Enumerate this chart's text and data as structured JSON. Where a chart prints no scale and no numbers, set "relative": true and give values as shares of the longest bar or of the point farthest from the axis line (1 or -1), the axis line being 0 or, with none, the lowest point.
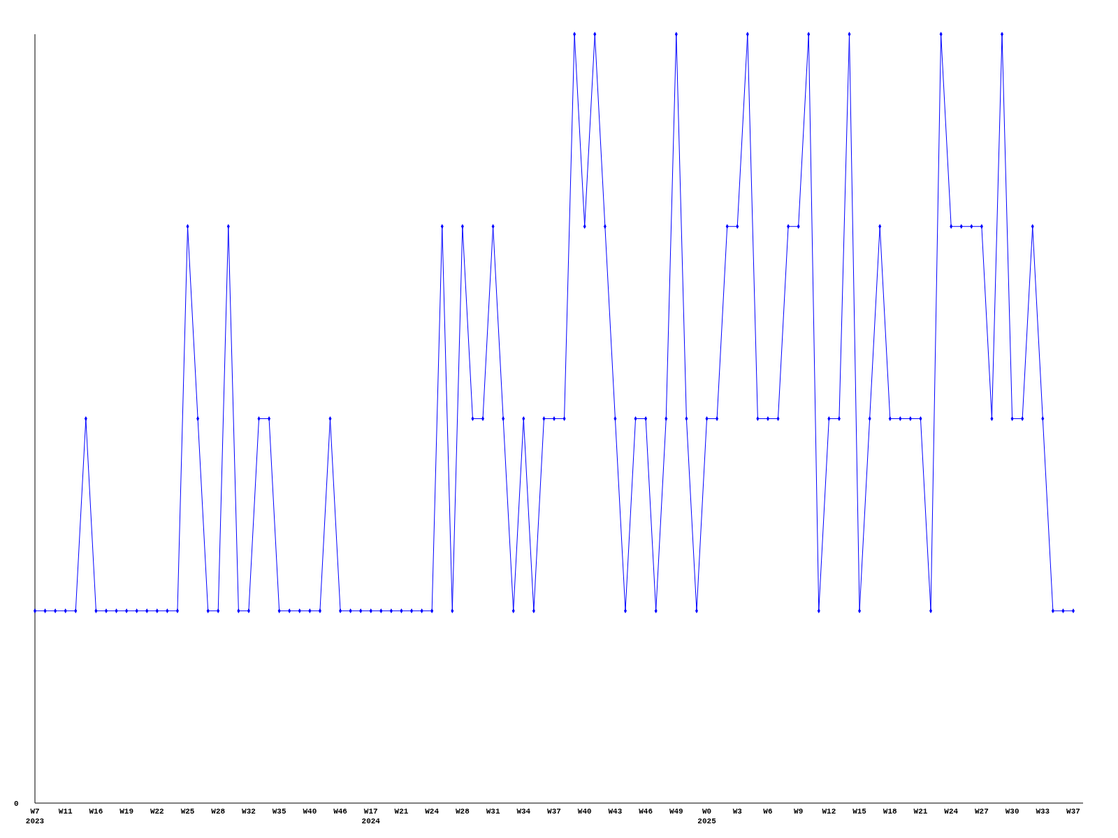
{
  "chart_data": {
    "type": "line",
    "relative": true,
    "marker": "diamond",
    "line_style": "solid",
    "annotations": [
      "0"
    ],
    "categories": [
      "W7\n2023",
      null,
      null,
      "W11",
      null,
      null,
      "W16",
      null,
      null,
      "W19",
      null,
      null,
      "W22",
      null,
      null,
      "W25",
      null,
      null,
      "W28",
      null,
      null,
      "W32",
      null,
      null,
      "W35",
      null,
      null,
      "W40",
      null,
      null,
      "W46",
      null,
      null,
      "W17\n2024",
      null,
      null,
      "W21",
      null,
      null,
      "W24",
      null,
      null,
      "W28",
      null,
      null,
      "W31",
      null,
      null,
      "W34",
      null,
      null,
      "W37",
      null,
      null,
      "W40",
      null,
      null,
      "W43",
      null,
      null,
      "W46",
      null,
      null,
      "W49",
      null,
      null,
      "W0\n2025",
      null,
      null,
      "W3",
      null,
      null,
      "W6",
      null,
      null,
      "W9",
      null,
      null,
      "W12",
      null,
      null,
      "W15",
      null,
      null,
      "W18",
      null,
      null,
      "W21",
      null,
      null,
      "W24",
      null,
      null,
      "W27",
      null,
      null,
      "W30",
      null,
      null,
      "W33",
      null,
      null,
      "W37"
    ],
    "series": [
      {
        "color": "#0000ff",
        "values": [
          0.25,
          0.25,
          0.25,
          0.25,
          0.25,
          0.5,
          0.25,
          0.25,
          0.25,
          0.25,
          0.25,
          0.25,
          0.25,
          0.25,
          0.25,
          0.75,
          0.5,
          0.25,
          0.25,
          0.75,
          0.25,
          0.25,
          0.5,
          0.5,
          0.25,
          0.25,
          0.25,
          0.25,
          0.25,
          0.5,
          0.25,
          0.25,
          0.25,
          0.25,
          0.25,
          0.25,
          0.25,
          0.25,
          0.25,
          0.25,
          0.75,
          0.25,
          0.75,
          0.5,
          0.5,
          0.75,
          0.5,
          0.25,
          0.5,
          0.25,
          0.5,
          0.5,
          0.5,
          1,
          0.75,
          1,
          0.75,
          0.5,
          0.25,
          0.5,
          0.5,
          0.25,
          0.5,
          1,
          0.5,
          0.25,
          0.5,
          0.5,
          0.75,
          0.75,
          1,
          0.5,
          0.5,
          0.5,
          0.75,
          0.75,
          1,
          0.25,
          0.5,
          0.5,
          1,
          0.25,
          0.5,
          0.75,
          0.5,
          0.5,
          0.5,
          0.5,
          0.25,
          1,
          0.75,
          0.75,
          0.75,
          0.75,
          0.5,
          1,
          0.5,
          0.5,
          0.75,
          0.5,
          0.25,
          0.25,
          0.25
        ]
      }
    ]
  }
}
